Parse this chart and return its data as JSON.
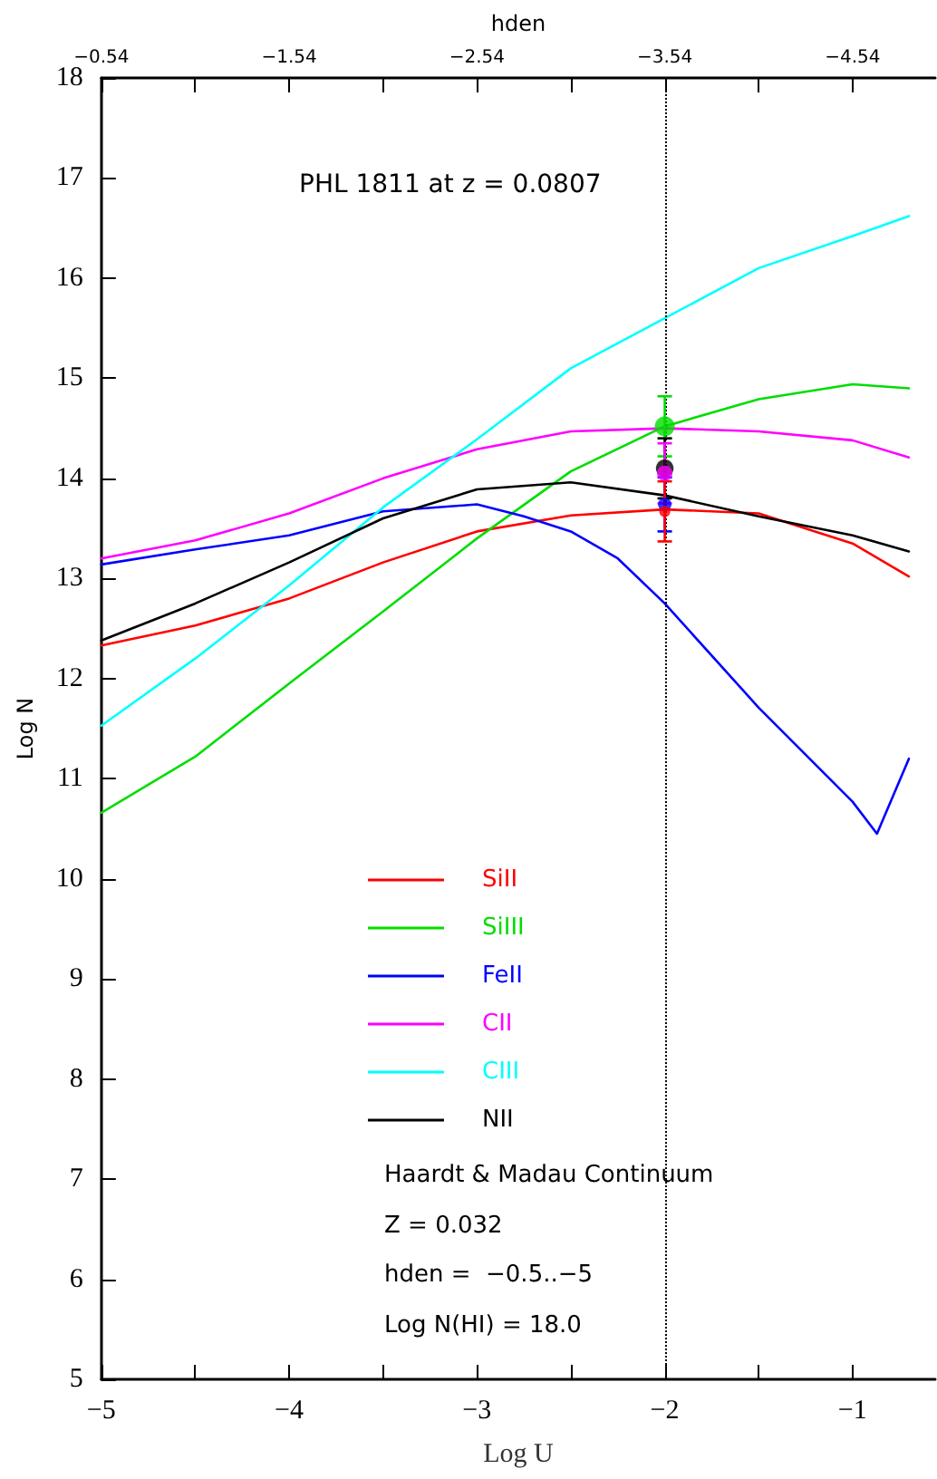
{
  "chart_data": {
    "type": "line",
    "title": "PHL 1811 at z = 0.0807",
    "xlabel": "Log U",
    "ylabel": "Log N",
    "x2label": "hden",
    "xlim": [
      -5,
      -0.56
    ],
    "xticks": [
      -5,
      {
        "value": -4.5,
        "label": null
      },
      -4,
      {
        "value": -3.5,
        "label": null
      },
      -3,
      {
        "value": -2.5,
        "label": null
      },
      -2,
      {
        "value": -1.5,
        "label": null
      },
      -1
    ],
    "x2lim": [
      -0.54,
      -4.98
    ],
    "x2ticks": [
      -0.54,
      {
        "value": -1.04,
        "label": null
      },
      -1.54,
      {
        "value": -2.04,
        "label": null
      },
      -2.54,
      {
        "value": -3.04,
        "label": null
      },
      -3.54,
      {
        "value": -4.04,
        "label": null
      },
      -4.54
    ],
    "ylim": [
      5,
      18
    ],
    "yticks": [
      5,
      6,
      7,
      8,
      9,
      10,
      11,
      12,
      13,
      14,
      15,
      16,
      17,
      18
    ],
    "legend": "bottom left",
    "marker": "none",
    "line_style": "solid",
    "ref_lines": [
      {
        "axis": "x",
        "value": -2,
        "color": "#000000",
        "line_style": "dotted"
      }
    ],
    "annotations": [
      "Haardt & Madau Continuum",
      "Z = 0.032",
      "hden =  −0.5..−5",
      "Log N(HI) = 18.0"
    ],
    "series": [
      {
        "name": "SiII",
        "color": "#ff0000",
        "x": [
          -5,
          -4.5,
          -4,
          -3.5,
          -3,
          -2.5,
          -2,
          -1.5,
          -1.2,
          -1,
          -0.7
        ],
        "values": [
          12.33,
          12.53,
          12.8,
          13.16,
          13.47,
          13.63,
          13.69,
          13.65,
          13.47,
          13.35,
          13.02
        ]
      },
      {
        "name": "SiIII",
        "color": "#00dd00",
        "x": [
          -5,
          -4.5,
          -4,
          -3.5,
          -3,
          -2.5,
          -2,
          -1.5,
          -1,
          -0.7
        ],
        "values": [
          10.66,
          11.22,
          11.95,
          12.67,
          13.4,
          14.07,
          14.52,
          14.79,
          14.94,
          14.9
        ]
      },
      {
        "name": "FeII",
        "color": "#0000ff",
        "x": [
          -5,
          -4.5,
          -4,
          -3.5,
          -3,
          -2.75,
          -2.5,
          -2.25,
          -2,
          -1.5,
          -1,
          -0.87,
          -0.7
        ],
        "values": [
          13.14,
          13.29,
          13.43,
          13.67,
          13.74,
          13.62,
          13.47,
          13.2,
          12.75,
          11.71,
          10.77,
          10.45,
          11.2
        ]
      },
      {
        "name": "CII",
        "color": "#ff00ff",
        "x": [
          -5,
          -4.5,
          -4,
          -3.5,
          -3,
          -2.5,
          -2,
          -1.5,
          -1,
          -0.7
        ],
        "values": [
          13.2,
          13.38,
          13.65,
          14.0,
          14.29,
          14.47,
          14.5,
          14.47,
          14.38,
          14.21
        ]
      },
      {
        "name": "CIII",
        "color": "#00ffff",
        "x": [
          -5,
          -4.5,
          -4,
          -3.5,
          -3,
          -2.5,
          -2,
          -1.5,
          -1,
          -0.7
        ],
        "values": [
          11.53,
          12.2,
          12.93,
          13.71,
          14.39,
          15.1,
          15.6,
          16.1,
          16.42,
          16.62
        ]
      },
      {
        "name": "NII",
        "color": "#000000",
        "x": [
          -5,
          -4.5,
          -4,
          -3.5,
          -3,
          -2.5,
          -2,
          -1.5,
          -1,
          -0.7
        ],
        "values": [
          12.38,
          12.75,
          13.16,
          13.6,
          13.89,
          13.96,
          13.83,
          13.62,
          13.43,
          13.27
        ]
      },
      {
        "type": "scatter",
        "marker": "circle",
        "color": "#00dd00",
        "x": [
          -2
        ],
        "values": [
          14.52
        ],
        "errors": [
          0.3
        ]
      },
      {
        "type": "scatter",
        "marker": "circle",
        "color": "#000000",
        "x": [
          -2
        ],
        "values": [
          14.1
        ],
        "errors": [
          0.3
        ]
      },
      {
        "type": "scatter",
        "marker": "circle",
        "color": "#ff00ff",
        "x": [
          -2
        ],
        "values": [
          14.05
        ],
        "errors": [
          0.3
        ]
      },
      {
        "type": "scatter",
        "marker": "circle",
        "color": "#0000ff",
        "x": [
          -2
        ],
        "values": [
          13.74
        ],
        "errors": [
          0.27
        ]
      },
      {
        "type": "scatter",
        "marker": "circle",
        "color": "#ff0000",
        "x": [
          -2
        ],
        "values": [
          13.67
        ],
        "errors": [
          0.3
        ]
      }
    ]
  }
}
